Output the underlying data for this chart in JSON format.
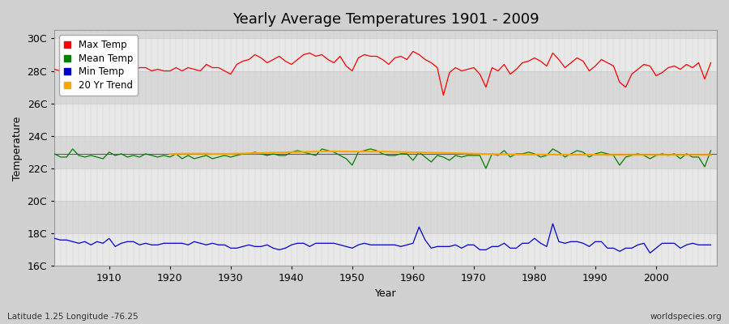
{
  "title": "Yearly Average Temperatures 1901 - 2009",
  "xlabel": "Year",
  "ylabel": "Temperature",
  "subtitle_left": "Latitude 1.25 Longitude -76.25",
  "subtitle_right": "worldspecies.org",
  "years": [
    1901,
    1902,
    1903,
    1904,
    1905,
    1906,
    1907,
    1908,
    1909,
    1910,
    1911,
    1912,
    1913,
    1914,
    1915,
    1916,
    1917,
    1918,
    1919,
    1920,
    1921,
    1922,
    1923,
    1924,
    1925,
    1926,
    1927,
    1928,
    1929,
    1930,
    1931,
    1932,
    1933,
    1934,
    1935,
    1936,
    1937,
    1938,
    1939,
    1940,
    1941,
    1942,
    1943,
    1944,
    1945,
    1946,
    1947,
    1948,
    1949,
    1950,
    1951,
    1952,
    1953,
    1954,
    1955,
    1956,
    1957,
    1958,
    1959,
    1960,
    1961,
    1962,
    1963,
    1964,
    1965,
    1966,
    1967,
    1968,
    1969,
    1970,
    1971,
    1972,
    1973,
    1974,
    1975,
    1976,
    1977,
    1978,
    1979,
    1980,
    1981,
    1982,
    1983,
    1984,
    1985,
    1986,
    1987,
    1988,
    1989,
    1990,
    1991,
    1992,
    1993,
    1994,
    1995,
    1996,
    1997,
    1998,
    1999,
    2000,
    2001,
    2002,
    2003,
    2004,
    2005,
    2006,
    2007,
    2008,
    2009
  ],
  "max_temp": [
    28.1,
    28.0,
    27.9,
    28.3,
    28.2,
    28.1,
    28.0,
    28.1,
    28.0,
    28.0,
    28.3,
    28.1,
    28.0,
    28.0,
    28.2,
    28.2,
    28.0,
    28.1,
    28.0,
    28.0,
    28.2,
    28.0,
    28.2,
    28.1,
    28.0,
    28.4,
    28.2,
    28.2,
    28.0,
    27.8,
    28.4,
    28.6,
    28.7,
    29.0,
    28.8,
    28.5,
    28.7,
    28.9,
    28.6,
    28.4,
    28.7,
    29.0,
    29.1,
    28.9,
    29.0,
    28.7,
    28.5,
    28.9,
    28.3,
    28.0,
    28.8,
    29.0,
    28.9,
    28.9,
    28.7,
    28.4,
    28.8,
    28.9,
    28.7,
    29.2,
    29.0,
    28.7,
    28.5,
    28.2,
    26.5,
    27.9,
    28.2,
    28.0,
    28.1,
    28.2,
    27.8,
    27.0,
    28.2,
    28.0,
    28.4,
    27.8,
    28.1,
    28.5,
    28.6,
    28.8,
    28.6,
    28.3,
    29.1,
    28.7,
    28.2,
    28.5,
    28.8,
    28.6,
    28.0,
    28.3,
    28.7,
    28.5,
    28.3,
    27.3,
    27.0,
    27.8,
    28.1,
    28.4,
    28.3,
    27.7,
    27.9,
    28.2,
    28.3,
    28.1,
    28.4,
    28.2,
    28.5,
    27.5,
    28.5
  ],
  "mean_temp": [
    22.9,
    22.7,
    22.7,
    23.2,
    22.8,
    22.7,
    22.8,
    22.7,
    22.6,
    23.0,
    22.8,
    22.9,
    22.7,
    22.8,
    22.7,
    22.9,
    22.8,
    22.7,
    22.8,
    22.7,
    22.9,
    22.6,
    22.8,
    22.6,
    22.7,
    22.8,
    22.6,
    22.7,
    22.8,
    22.7,
    22.8,
    22.9,
    22.9,
    23.0,
    22.9,
    22.8,
    22.9,
    22.8,
    22.8,
    23.0,
    23.1,
    23.0,
    22.9,
    22.8,
    23.2,
    23.1,
    23.0,
    22.8,
    22.6,
    22.2,
    23.0,
    23.1,
    23.2,
    23.1,
    22.9,
    22.8,
    22.8,
    22.9,
    22.9,
    22.5,
    23.0,
    22.7,
    22.4,
    22.8,
    22.7,
    22.5,
    22.8,
    22.7,
    22.8,
    22.8,
    22.8,
    22.0,
    22.9,
    22.8,
    23.1,
    22.7,
    22.9,
    22.9,
    23.0,
    22.9,
    22.7,
    22.8,
    23.2,
    23.0,
    22.7,
    22.9,
    23.1,
    23.0,
    22.7,
    22.9,
    23.0,
    22.9,
    22.8,
    22.2,
    22.7,
    22.8,
    22.9,
    22.8,
    22.6,
    22.8,
    22.9,
    22.8,
    22.9,
    22.6,
    22.9,
    22.7,
    22.7,
    22.1,
    23.1
  ],
  "min_temp": [
    17.7,
    17.6,
    17.6,
    17.5,
    17.4,
    17.5,
    17.3,
    17.5,
    17.4,
    17.7,
    17.2,
    17.4,
    17.5,
    17.5,
    17.3,
    17.4,
    17.3,
    17.3,
    17.4,
    17.4,
    17.4,
    17.4,
    17.3,
    17.5,
    17.4,
    17.3,
    17.4,
    17.3,
    17.3,
    17.1,
    17.1,
    17.2,
    17.3,
    17.2,
    17.2,
    17.3,
    17.1,
    17.0,
    17.1,
    17.3,
    17.4,
    17.4,
    17.2,
    17.4,
    17.4,
    17.4,
    17.4,
    17.3,
    17.2,
    17.1,
    17.3,
    17.4,
    17.3,
    17.3,
    17.3,
    17.3,
    17.3,
    17.2,
    17.3,
    17.4,
    18.4,
    17.6,
    17.1,
    17.2,
    17.2,
    17.2,
    17.3,
    17.1,
    17.3,
    17.3,
    17.0,
    17.0,
    17.2,
    17.2,
    17.4,
    17.1,
    17.1,
    17.4,
    17.4,
    17.7,
    17.4,
    17.2,
    18.6,
    17.5,
    17.4,
    17.5,
    17.5,
    17.4,
    17.2,
    17.5,
    17.5,
    17.1,
    17.1,
    16.9,
    17.1,
    17.1,
    17.3,
    17.4,
    16.8,
    17.1,
    17.4,
    17.4,
    17.4,
    17.1,
    17.3,
    17.4,
    17.3,
    17.3,
    17.3
  ],
  "trend_start_year": 1920,
  "trend_years": [
    1920,
    1921,
    1922,
    1923,
    1924,
    1925,
    1926,
    1927,
    1928,
    1929,
    1930,
    1931,
    1932,
    1933,
    1934,
    1935,
    1936,
    1937,
    1938,
    1939,
    1940,
    1941,
    1942,
    1943,
    1944,
    1945,
    1946,
    1947,
    1948,
    1949,
    1950,
    1951,
    1952,
    1953,
    1954,
    1955,
    1956,
    1957,
    1958,
    1959,
    1960,
    1961,
    1962,
    1963,
    1964,
    1965,
    1966,
    1967,
    1968,
    1969,
    1970,
    1971,
    1972,
    1973,
    1974,
    1975,
    1976,
    1977,
    1978,
    1979,
    1980,
    1981,
    1982,
    1983,
    1984,
    1985,
    1986,
    1987,
    1988,
    1989,
    1990,
    1991,
    1992,
    1993,
    1994,
    1995,
    1996,
    1997,
    1998,
    1999,
    2000,
    2001,
    2002,
    2003,
    2004,
    2005,
    2006,
    2007,
    2008,
    2009
  ],
  "trend_values": [
    22.88,
    22.9,
    22.91,
    22.91,
    22.91,
    22.91,
    22.91,
    22.9,
    22.9,
    22.9,
    22.9,
    22.91,
    22.92,
    22.93,
    22.94,
    22.95,
    22.96,
    22.97,
    22.98,
    22.99,
    23.0,
    23.01,
    23.02,
    23.03,
    23.04,
    23.05,
    23.05,
    23.05,
    23.05,
    23.04,
    23.04,
    23.04,
    23.04,
    23.04,
    23.04,
    23.04,
    23.03,
    23.02,
    23.01,
    23.0,
    22.99,
    22.99,
    22.98,
    22.97,
    22.97,
    22.96,
    22.95,
    22.94,
    22.93,
    22.92,
    22.91,
    22.9,
    22.89,
    22.88,
    22.87,
    22.87,
    22.86,
    22.86,
    22.86,
    22.85,
    22.85,
    22.85,
    22.85,
    22.85,
    22.84,
    22.84,
    22.84,
    22.84,
    22.84,
    22.84,
    22.84,
    22.84,
    22.83,
    22.83,
    22.83,
    22.83,
    22.83,
    22.83,
    22.83,
    22.83,
    22.83,
    22.83,
    22.83,
    22.83,
    22.83,
    22.83,
    22.83,
    22.83,
    22.83,
    22.83
  ],
  "colors": {
    "max_temp": "#ff0000",
    "mean_temp": "#008000",
    "min_temp": "#0000cc",
    "trend": "#ffa500",
    "mean_line": "#606060",
    "band_light": "#e8e8e8",
    "band_dark": "#d8d8d8",
    "outer_bg": "#d0d0d0",
    "grid_v": "#cccccc",
    "grid_h": "#cccccc"
  },
  "ylim": [
    16.0,
    30.5
  ],
  "yticks": [
    16,
    18,
    20,
    22,
    24,
    26,
    28,
    30
  ],
  "ytick_labels": [
    "16C",
    "18C",
    "20C",
    "22C",
    "24C",
    "26C",
    "28C",
    "30C"
  ],
  "xlim": [
    1901,
    2010
  ],
  "xticks": [
    1910,
    1920,
    1930,
    1940,
    1950,
    1960,
    1970,
    1980,
    1990,
    2000
  ],
  "legend_labels": [
    "Max Temp",
    "Mean Temp",
    "Min Temp",
    "20 Yr Trend"
  ],
  "mean_line_value": 22.9,
  "linewidth": 0.9,
  "title_fontsize": 13,
  "label_fontsize": 9,
  "tick_fontsize": 9
}
